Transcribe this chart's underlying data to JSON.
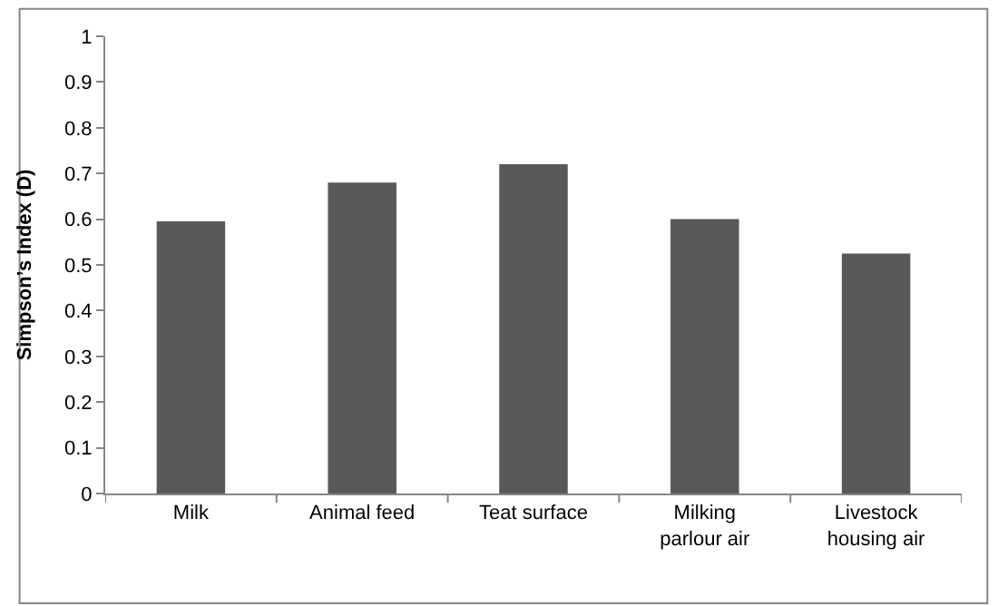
{
  "chart_data": {
    "type": "bar",
    "ylabel": "Simpson’s Index (D)",
    "categories": [
      "Milk",
      "Animal feed",
      "Teat surface",
      "Milking parlour air",
      "Livestock housing air"
    ],
    "values": [
      0.595,
      0.68,
      0.72,
      0.6,
      0.525
    ],
    "color": "#595959",
    "ylim": [
      0,
      1
    ],
    "yticks": [
      0,
      0.1,
      0.2,
      0.3,
      0.4,
      0.5,
      0.6,
      0.7,
      0.8,
      0.9,
      1
    ],
    "grid": false
  }
}
